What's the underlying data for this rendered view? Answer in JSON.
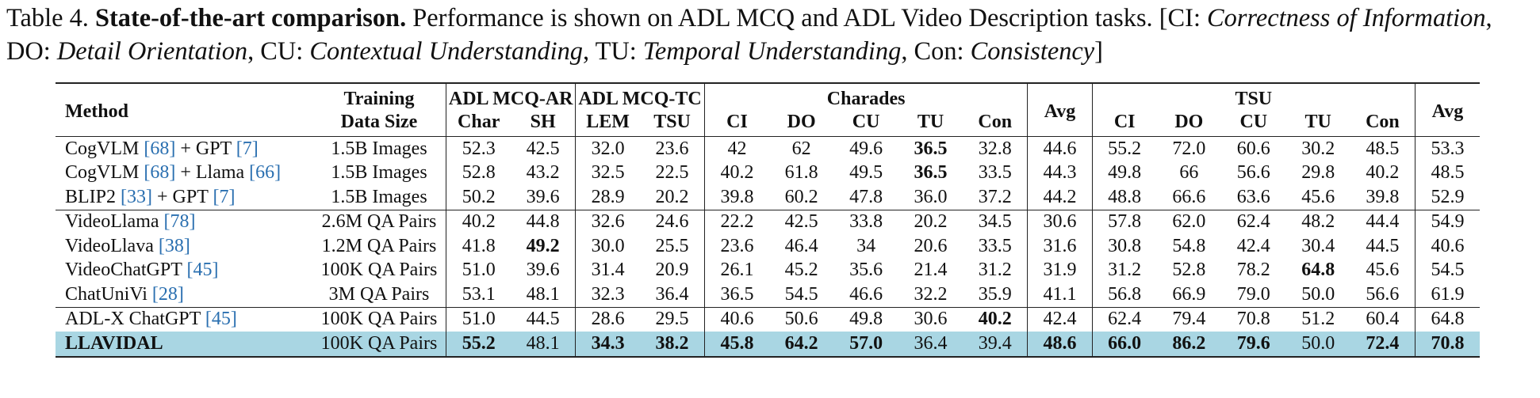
{
  "caption": {
    "label": "Table 4.",
    "bold_title": "State-of-the-art comparison.",
    "text": "Performance is shown on ADL MCQ and ADL Video Description tasks.",
    "abbrev_open": "[CI: ",
    "ci": "Correctness of Information",
    "do_label": ", DO: ",
    "do": "Detail Orientation",
    "cu_label": ", CU: ",
    "cu": "Contextual Understanding",
    "tu_label": ", TU: ",
    "tu": "Temporal Understanding",
    "con_label": ", Con: ",
    "con": "Consistency",
    "abbrev_close": "]"
  },
  "header": {
    "method": "Method",
    "training_line1": "Training",
    "training_line2": "Data Size",
    "adl_ar": "ADL MCQ-AR",
    "adl_tc": "ADL MCQ-TC",
    "charades": "Charades",
    "avg1": "Avg",
    "tsu": "TSU",
    "avg2": "Avg",
    "sub": [
      "Char",
      "SH",
      "LEM",
      "TSU",
      "CI",
      "DO",
      "CU",
      "TU",
      "Con",
      "CI",
      "DO",
      "CU",
      "TU",
      "Con"
    ]
  },
  "groups": [
    [
      {
        "name": "CogVLM",
        "cite1": "[68]",
        "mid": " + GPT ",
        "cite2": "[7]",
        "size": "1.5B Images",
        "values": [
          "52.3",
          "42.5",
          "32.0",
          "23.6",
          "42",
          "62",
          "49.6",
          "36.5",
          "32.8",
          "44.6",
          "55.2",
          "72.0",
          "60.6",
          "30.2",
          "48.5",
          "53.3"
        ],
        "bold": [
          7
        ]
      },
      {
        "name": "CogVLM",
        "cite1": "[68]",
        "mid": " + Llama ",
        "cite2": "[66]",
        "size": "1.5B Images",
        "values": [
          "52.8",
          "43.2",
          "32.5",
          "22.5",
          "40.2",
          "61.8",
          "49.5",
          "36.5",
          "33.5",
          "44.3",
          "49.8",
          "66",
          "56.6",
          "29.8",
          "40.2",
          "48.5"
        ],
        "bold": [
          7
        ]
      },
      {
        "name": "BLIP2",
        "cite1": "[33]",
        "mid": " + GPT ",
        "cite2": "[7]",
        "size": "1.5B Images",
        "values": [
          "50.2",
          "39.6",
          "28.9",
          "20.2",
          "39.8",
          "60.2",
          "47.8",
          "36.0",
          "37.2",
          "44.2",
          "48.8",
          "66.6",
          "63.6",
          "45.6",
          "39.8",
          "52.9"
        ],
        "bold": []
      }
    ],
    [
      {
        "name": "VideoLlama",
        "cite1": "[78]",
        "mid": "",
        "cite2": "",
        "size": "2.6M QA Pairs",
        "values": [
          "40.2",
          "44.8",
          "32.6",
          "24.6",
          "22.2",
          "42.5",
          "33.8",
          "20.2",
          "34.5",
          "30.6",
          "57.8",
          "62.0",
          "62.4",
          "48.2",
          "44.4",
          "54.9"
        ],
        "bold": []
      },
      {
        "name": "VideoLlava",
        "cite1": "[38]",
        "mid": "",
        "cite2": "",
        "size": "1.2M QA Pairs",
        "values": [
          "41.8",
          "49.2",
          "30.0",
          "25.5",
          "23.6",
          "46.4",
          "34",
          "20.6",
          "33.5",
          "31.6",
          "30.8",
          "54.8",
          "42.4",
          "30.4",
          "44.5",
          "40.6"
        ],
        "bold": [
          1
        ]
      },
      {
        "name": "VideoChatGPT",
        "cite1": "[45]",
        "mid": "",
        "cite2": "",
        "size": "100K QA Pairs",
        "values": [
          "51.0",
          "39.6",
          "31.4",
          "20.9",
          "26.1",
          "45.2",
          "35.6",
          "21.4",
          "31.2",
          "31.9",
          "31.2",
          "52.8",
          "78.2",
          "64.8",
          "45.6",
          "54.5"
        ],
        "bold": [
          13
        ]
      },
      {
        "name": "ChatUniVi",
        "cite1": "[28]",
        "mid": "",
        "cite2": "",
        "size": "3M QA Pairs",
        "values": [
          "53.1",
          "48.1",
          "32.3",
          "36.4",
          "36.5",
          "54.5",
          "46.6",
          "32.2",
          "35.9",
          "41.1",
          "56.8",
          "66.9",
          "79.0",
          "50.0",
          "56.6",
          "61.9"
        ],
        "bold": []
      }
    ],
    [
      {
        "name": "ADL-X ChatGPT",
        "cite1": "[45]",
        "mid": "",
        "cite2": "",
        "size": "100K QA Pairs",
        "values": [
          "51.0",
          "44.5",
          "28.6",
          "29.5",
          "40.6",
          "50.6",
          "49.8",
          "30.6",
          "40.2",
          "42.4",
          "62.4",
          "79.4",
          "70.8",
          "51.2",
          "60.4",
          "64.8"
        ],
        "bold": [
          8
        ]
      },
      {
        "name": "LLAVIDAL",
        "cite1": "",
        "mid": "",
        "cite2": "",
        "size": "100K QA Pairs",
        "values": [
          "55.2",
          "48.1",
          "34.3",
          "38.2",
          "45.8",
          "64.2",
          "57.0",
          "36.4",
          "39.4",
          "48.6",
          "66.0",
          "86.2",
          "79.6",
          "50.0",
          "72.4",
          "70.8"
        ],
        "bold": [
          0,
          2,
          3,
          4,
          5,
          6,
          9,
          10,
          11,
          12,
          14,
          15
        ],
        "highlight": true,
        "name_bold": true
      }
    ]
  ]
}
